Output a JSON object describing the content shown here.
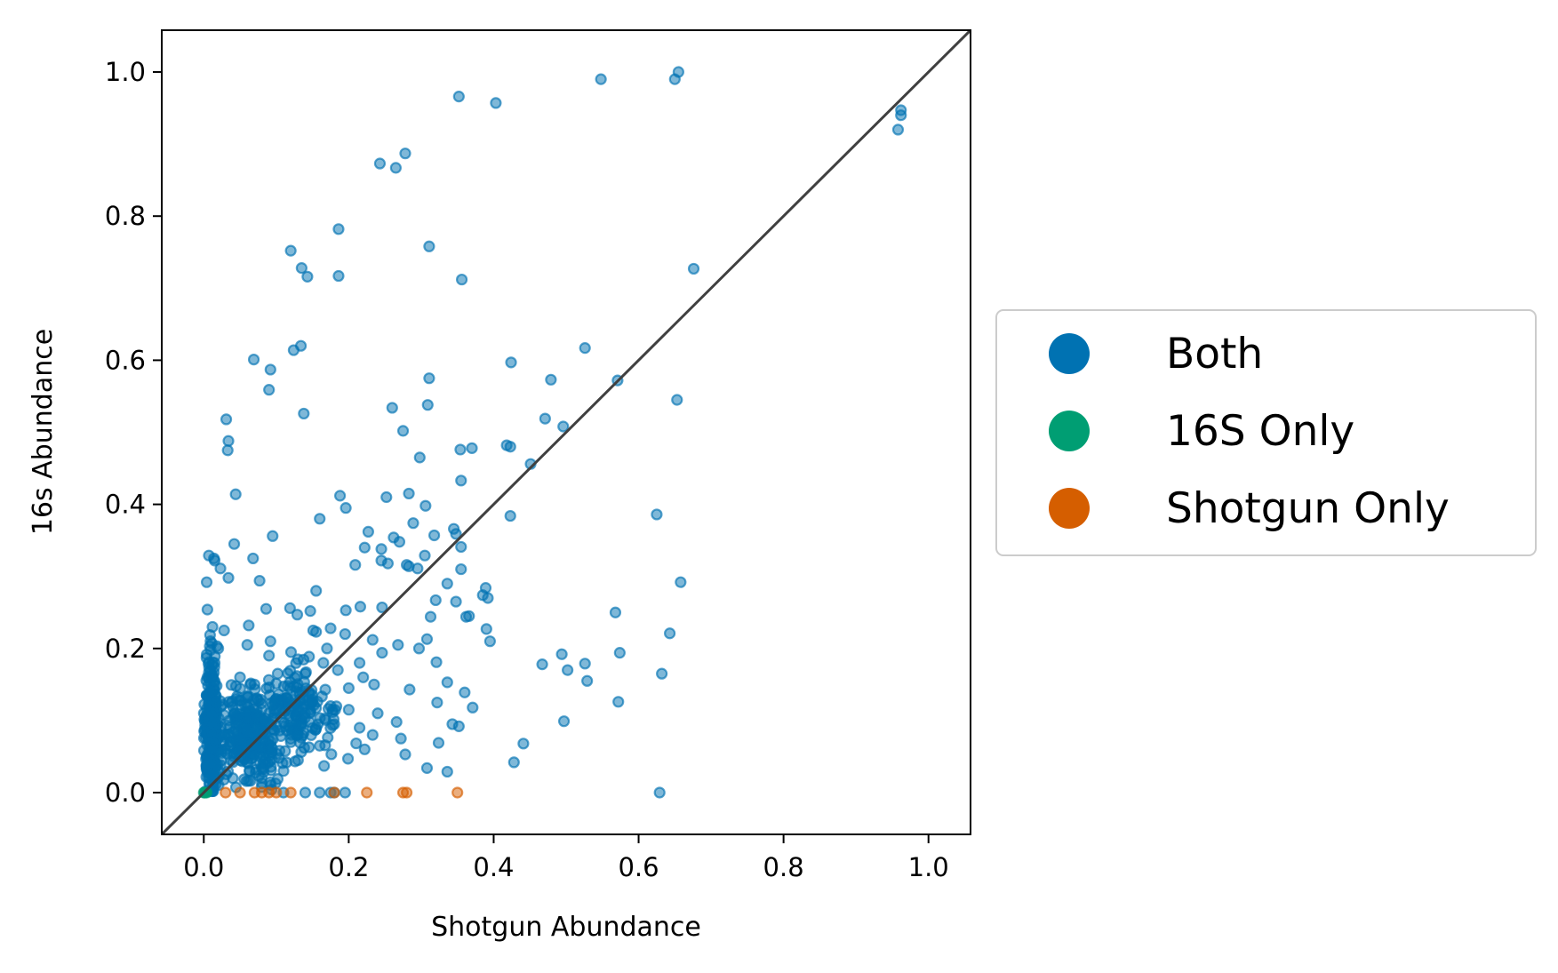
{
  "chart_data": {
    "type": "scatter",
    "title": "",
    "xlabel": "Shotgun Abundance",
    "ylabel": "16s Abundance",
    "xlim": [
      -0.058,
      1.058
    ],
    "ylim": [
      -0.058,
      1.058
    ],
    "xticks": [
      "0.0",
      "0.2",
      "0.4",
      "0.6",
      "0.8",
      "1.0"
    ],
    "yticks": [
      "0.0",
      "0.2",
      "0.4",
      "0.6",
      "0.8",
      "1.0"
    ],
    "grid": false,
    "legend_position": "outside-right",
    "reference_line": {
      "type": "identity",
      "color": "#404040"
    },
    "series": [
      {
        "name": "Both",
        "color": "#0072B2",
        "points": [
          [
            0.65,
            0.99
          ],
          [
            0.655,
            1.0
          ],
          [
            0.548,
            0.99
          ],
          [
            0.352,
            0.966
          ],
          [
            0.403,
            0.957
          ],
          [
            0.962,
            0.947
          ],
          [
            0.962,
            0.94
          ],
          [
            0.958,
            0.92
          ],
          [
            0.278,
            0.887
          ],
          [
            0.243,
            0.873
          ],
          [
            0.265,
            0.867
          ],
          [
            0.186,
            0.782
          ],
          [
            0.311,
            0.758
          ],
          [
            0.12,
            0.752
          ],
          [
            0.135,
            0.728
          ],
          [
            0.143,
            0.716
          ],
          [
            0.186,
            0.717
          ],
          [
            0.356,
            0.712
          ],
          [
            0.676,
            0.727
          ],
          [
            0.134,
            0.62
          ],
          [
            0.124,
            0.614
          ],
          [
            0.526,
            0.617
          ],
          [
            0.069,
            0.601
          ],
          [
            0.092,
            0.587
          ],
          [
            0.424,
            0.597
          ],
          [
            0.311,
            0.575
          ],
          [
            0.479,
            0.573
          ],
          [
            0.571,
            0.572
          ],
          [
            0.09,
            0.559
          ],
          [
            0.653,
            0.545
          ],
          [
            0.309,
            0.538
          ],
          [
            0.26,
            0.534
          ],
          [
            0.138,
            0.526
          ],
          [
            0.471,
            0.519
          ],
          [
            0.031,
            0.518
          ],
          [
            0.496,
            0.508
          ],
          [
            0.275,
            0.502
          ],
          [
            0.034,
            0.488
          ],
          [
            0.033,
            0.475
          ],
          [
            0.418,
            0.482
          ],
          [
            0.423,
            0.48
          ],
          [
            0.354,
            0.476
          ],
          [
            0.37,
            0.478
          ],
          [
            0.298,
            0.465
          ],
          [
            0.451,
            0.456
          ],
          [
            0.355,
            0.433
          ],
          [
            0.044,
            0.414
          ],
          [
            0.188,
            0.412
          ],
          [
            0.252,
            0.41
          ],
          [
            0.283,
            0.415
          ],
          [
            0.196,
            0.395
          ],
          [
            0.306,
            0.398
          ],
          [
            0.423,
            0.384
          ],
          [
            0.625,
            0.386
          ],
          [
            0.16,
            0.38
          ],
          [
            0.289,
            0.374
          ],
          [
            0.227,
            0.362
          ],
          [
            0.345,
            0.366
          ],
          [
            0.348,
            0.359
          ],
          [
            0.262,
            0.354
          ],
          [
            0.27,
            0.348
          ],
          [
            0.318,
            0.357
          ],
          [
            0.355,
            0.341
          ],
          [
            0.095,
            0.356
          ],
          [
            0.042,
            0.345
          ],
          [
            0.222,
            0.34
          ],
          [
            0.245,
            0.338
          ],
          [
            0.007,
            0.329
          ],
          [
            0.305,
            0.329
          ],
          [
            0.014,
            0.325
          ],
          [
            0.015,
            0.322
          ],
          [
            0.068,
            0.325
          ],
          [
            0.209,
            0.316
          ],
          [
            0.245,
            0.322
          ],
          [
            0.254,
            0.318
          ],
          [
            0.28,
            0.316
          ],
          [
            0.283,
            0.314
          ],
          [
            0.295,
            0.311
          ],
          [
            0.023,
            0.311
          ],
          [
            0.034,
            0.298
          ],
          [
            0.004,
            0.292
          ],
          [
            0.077,
            0.294
          ],
          [
            0.355,
            0.31
          ],
          [
            0.658,
            0.292
          ],
          [
            0.155,
            0.28
          ],
          [
            0.336,
            0.29
          ],
          [
            0.389,
            0.284
          ],
          [
            0.385,
            0.274
          ],
          [
            0.348,
            0.265
          ],
          [
            0.392,
            0.27
          ],
          [
            0.216,
            0.258
          ],
          [
            0.246,
            0.257
          ],
          [
            0.196,
            0.253
          ],
          [
            0.32,
            0.267
          ],
          [
            0.568,
            0.25
          ],
          [
            0.086,
            0.255
          ],
          [
            0.005,
            0.254
          ],
          [
            0.119,
            0.256
          ],
          [
            0.129,
            0.247
          ],
          [
            0.147,
            0.252
          ],
          [
            0.313,
            0.244
          ],
          [
            0.362,
            0.244
          ],
          [
            0.366,
            0.245
          ],
          [
            0.643,
            0.221
          ],
          [
            0.39,
            0.227
          ],
          [
            0.151,
            0.225
          ],
          [
            0.175,
            0.228
          ],
          [
            0.012,
            0.23
          ],
          [
            0.028,
            0.225
          ],
          [
            0.062,
            0.232
          ],
          [
            0.395,
            0.21
          ],
          [
            0.092,
            0.21
          ],
          [
            0.155,
            0.223
          ],
          [
            0.233,
            0.212
          ],
          [
            0.297,
            0.2
          ],
          [
            0.308,
            0.213
          ],
          [
            0.268,
            0.205
          ],
          [
            0.246,
            0.194
          ],
          [
            0.574,
            0.194
          ],
          [
            0.494,
            0.192
          ],
          [
            0.321,
            0.181
          ],
          [
            0.467,
            0.178
          ],
          [
            0.526,
            0.179
          ],
          [
            0.502,
            0.17
          ],
          [
            0.529,
            0.155
          ],
          [
            0.632,
            0.165
          ],
          [
            0.36,
            0.139
          ],
          [
            0.336,
            0.153
          ],
          [
            0.284,
            0.143
          ],
          [
            0.371,
            0.118
          ],
          [
            0.322,
            0.125
          ],
          [
            0.572,
            0.126
          ],
          [
            0.497,
            0.099
          ],
          [
            0.343,
            0.095
          ],
          [
            0.352,
            0.092
          ],
          [
            0.266,
            0.098
          ],
          [
            0.272,
            0.075
          ],
          [
            0.324,
            0.069
          ],
          [
            0.441,
            0.068
          ],
          [
            0.278,
            0.053
          ],
          [
            0.428,
            0.042
          ],
          [
            0.308,
            0.034
          ],
          [
            0.336,
            0.029
          ],
          [
            0.629,
            0.0
          ],
          [
            0.215,
            0.09
          ],
          [
            0.233,
            0.08
          ],
          [
            0.222,
            0.06
          ],
          [
            0.166,
            0.037
          ],
          [
            0.199,
            0.047
          ],
          [
            0.2,
            0.145
          ],
          [
            0.22,
            0.16
          ],
          [
            0.185,
            0.17
          ],
          [
            0.165,
            0.18
          ],
          [
            0.14,
            0.165
          ],
          [
            0.13,
            0.185
          ],
          [
            0.102,
            0.165
          ],
          [
            0.09,
            0.19
          ],
          [
            0.06,
            0.205
          ],
          [
            0.05,
            0.16
          ],
          [
            0.17,
            0.2
          ],
          [
            0.195,
            0.22
          ],
          [
            0.215,
            0.18
          ],
          [
            0.235,
            0.15
          ],
          [
            0.24,
            0.11
          ],
          [
            0.175,
            0.12
          ],
          [
            0.155,
            0.09
          ],
          [
            0.145,
            0.14
          ],
          [
            0.11,
            0.11
          ],
          [
            0.12,
            0.07
          ],
          [
            0.1,
            0.13
          ],
          [
            0.08,
            0.115
          ],
          [
            0.07,
            0.15
          ],
          [
            0.045,
            0.13
          ],
          [
            0.02,
            0.2
          ],
          [
            0.015,
            0.18
          ],
          [
            0.035,
            0.1
          ],
          [
            0.06,
            0.085
          ],
          [
            0.09,
            0.06
          ],
          [
            0.13,
            0.045
          ],
          [
            0.16,
            0.065
          ],
          [
            0.18,
            0.095
          ],
          [
            0.2,
            0.115
          ],
          [
            0.11,
            0.03
          ],
          [
            0.08,
            0.035
          ],
          [
            0.05,
            0.05
          ],
          [
            0.035,
            0.065
          ],
          [
            0.025,
            0.08
          ],
          [
            0.012,
            0.11
          ],
          [
            0.01,
            0.14
          ],
          [
            0.005,
            0.16
          ],
          [
            0.01,
            0.06
          ],
          [
            0.02,
            0.03
          ],
          [
            0.04,
            0.02
          ],
          [
            0.008,
            0.02
          ],
          [
            0.14,
            0.0
          ],
          [
            0.16,
            0.0
          ],
          [
            0.18,
            0.0
          ],
          [
            0.195,
            0.0
          ],
          [
            0.11,
            0.0
          ],
          [
            0.175,
            0.0
          ]
        ]
      },
      {
        "name": "16S Only",
        "color": "#009E73",
        "points": [
          [
            0.0,
            0.0
          ],
          [
            0.002,
            0.0
          ],
          [
            0.004,
            0.0
          ],
          [
            0.001,
            0.0
          ]
        ]
      },
      {
        "name": "Shotgun Only",
        "color": "#D55E00",
        "points": [
          [
            0.03,
            0.0
          ],
          [
            0.05,
            0.0
          ],
          [
            0.07,
            0.0
          ],
          [
            0.08,
            0.0
          ],
          [
            0.1,
            0.0
          ],
          [
            0.12,
            0.0
          ],
          [
            0.18,
            0.0
          ],
          [
            0.225,
            0.0
          ],
          [
            0.275,
            0.0
          ],
          [
            0.28,
            0.0
          ],
          [
            0.35,
            0.0
          ],
          [
            0.09,
            0.0
          ]
        ]
      }
    ],
    "dense_cluster": {
      "series": "Both",
      "description_free_params": [
        {
          "x_center": 0.01,
          "y_center": 0.09,
          "x_spread": 0.012,
          "y_spread": 0.11,
          "n": 260
        },
        {
          "x_center": 0.06,
          "y_center": 0.08,
          "x_spread": 0.05,
          "y_spread": 0.07,
          "n": 260
        },
        {
          "x_center": 0.13,
          "y_center": 0.11,
          "x_spread": 0.06,
          "y_spread": 0.07,
          "n": 160
        }
      ]
    }
  },
  "legend": {
    "items": [
      {
        "label": "Both",
        "color": "#0072B2"
      },
      {
        "label": "16S Only",
        "color": "#009E73"
      },
      {
        "label": "Shotgun Only",
        "color": "#D55E00"
      }
    ]
  }
}
